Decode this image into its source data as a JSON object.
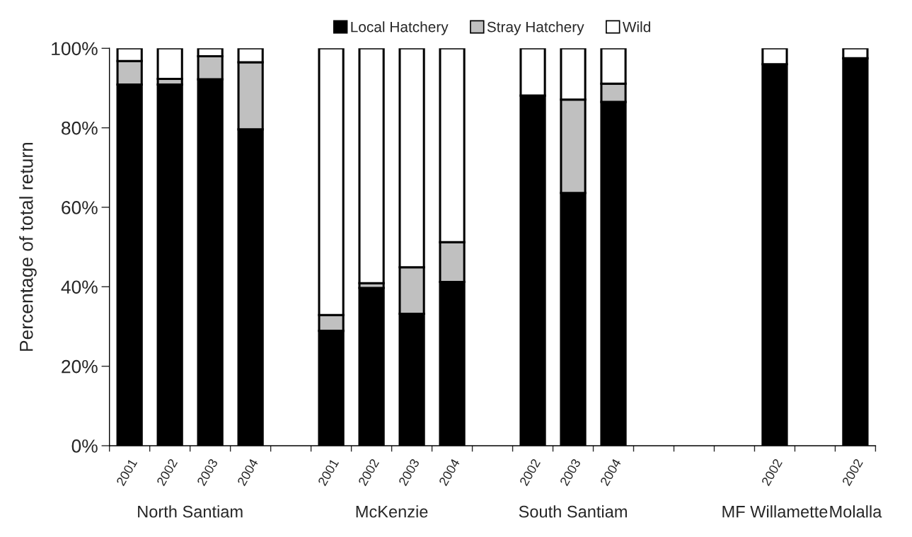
{
  "chart_data": {
    "type": "bar",
    "stacked": true,
    "ylabel": "Percentage of total return",
    "categories": [
      "2001",
      "2002",
      "2003",
      "2004",
      null,
      "2001",
      "2002",
      "2003",
      "2004",
      null,
      "2002",
      "2003",
      "2004",
      null,
      null,
      null,
      "2002",
      null,
      "2002"
    ],
    "series": [
      {
        "name": "Local Hatchery",
        "color": "#000000",
        "values": [
          90.9,
          90.9,
          92.2,
          79.6,
          null,
          28.9,
          39.7,
          33.2,
          41.2,
          null,
          88.1,
          63.6,
          86.5,
          null,
          null,
          null,
          96.0,
          null,
          97.5
        ]
      },
      {
        "name": "Stray Hatchery",
        "color": "#c0c0c0",
        "values": [
          5.9,
          1.4,
          5.8,
          16.9,
          null,
          4.0,
          1.2,
          11.7,
          10.0,
          null,
          0,
          23.5,
          4.6,
          null,
          null,
          null,
          0,
          null,
          0
        ]
      },
      {
        "name": "Wild",
        "color": "#ffffff",
        "values": [
          3.2,
          7.7,
          2.0,
          3.5,
          null,
          67.1,
          59.1,
          55.1,
          48.8,
          null,
          11.9,
          12.9,
          8.9,
          null,
          null,
          null,
          4.0,
          null,
          2.5
        ]
      }
    ],
    "ylim": [
      0,
      100
    ],
    "yticks": [
      {
        "value": 0,
        "label": "0%"
      },
      {
        "value": 20,
        "label": "20%"
      },
      {
        "value": 40,
        "label": "40%"
      },
      {
        "value": 60,
        "label": "60%"
      },
      {
        "value": 80,
        "label": "80%"
      },
      {
        "value": 100,
        "label": "100%"
      }
    ],
    "legend": "top",
    "grid": false,
    "annotations": [
      "North Santiam",
      "McKenzie",
      "South Santiam",
      "MF Willamette",
      "Molalla"
    ]
  }
}
